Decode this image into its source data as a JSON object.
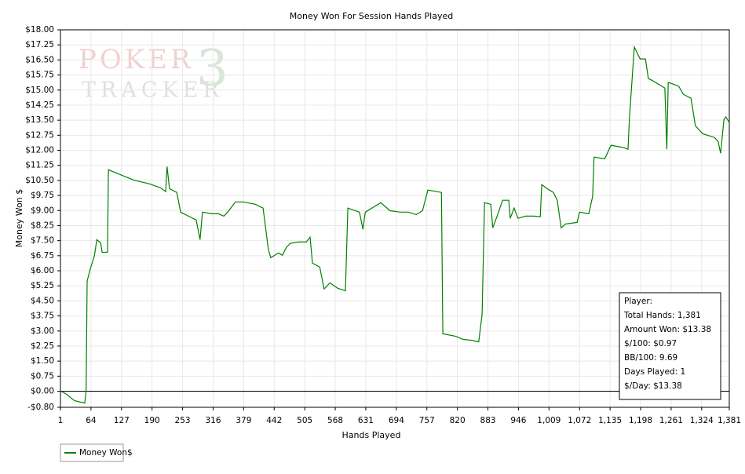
{
  "chart_data": {
    "type": "line",
    "title": "Money Won For Session Hands Played",
    "xlabel": "Hands Played",
    "ylabel": "Money Won $",
    "watermark": [
      "POKER",
      "TRACKER",
      "3"
    ],
    "x": [
      1,
      6,
      14,
      30,
      51,
      54,
      56,
      63,
      71,
      76,
      84,
      87,
      98,
      100,
      119,
      152,
      184,
      208,
      218,
      221,
      226,
      241,
      249,
      265,
      281,
      289,
      294,
      314,
      327,
      338,
      346,
      362,
      378,
      403,
      419,
      430,
      435,
      451,
      459,
      467,
      475,
      492,
      508,
      516,
      521,
      536,
      545,
      557,
      573,
      589,
      594,
      618,
      625,
      630,
      651,
      662,
      681,
      702,
      719,
      735,
      748,
      759,
      787,
      790,
      816,
      832,
      848,
      864,
      871,
      876,
      889,
      893,
      905,
      913,
      926,
      929,
      937,
      945,
      961,
      978,
      991,
      994,
      1005,
      1018,
      1026,
      1034,
      1043,
      1067,
      1072,
      1091,
      1099,
      1102,
      1124,
      1137,
      1164,
      1172,
      1175,
      1185,
      1197,
      1208,
      1214,
      1221,
      1237,
      1248,
      1252,
      1255,
      1269,
      1277,
      1286,
      1302,
      1311,
      1326,
      1350,
      1358,
      1363,
      1370,
      1374,
      1381
    ],
    "series": [
      {
        "name": "Money Won$",
        "color": "#008000",
        "values": [
          0,
          -0.04,
          -0.16,
          -0.47,
          -0.59,
          0,
          5.48,
          6.14,
          6.73,
          7.55,
          7.39,
          6.92,
          6.92,
          11.03,
          10.84,
          10.52,
          10.33,
          10.13,
          9.94,
          11.19,
          10.09,
          9.9,
          8.92,
          8.72,
          8.53,
          7.55,
          8.92,
          8.84,
          8.84,
          8.72,
          8.92,
          9.43,
          9.43,
          9.31,
          9.12,
          7.04,
          6.65,
          6.89,
          6.77,
          7.16,
          7.36,
          7.43,
          7.43,
          7.67,
          6.38,
          6.18,
          5.09,
          5.4,
          5.13,
          5.01,
          9.12,
          8.92,
          8.06,
          8.92,
          9.23,
          9.39,
          8.99,
          8.92,
          8.92,
          8.8,
          8.99,
          10.02,
          9.9,
          2.86,
          2.74,
          2.58,
          2.54,
          2.46,
          3.83,
          9.39,
          9.31,
          8.14,
          8.92,
          9.51,
          9.51,
          8.61,
          9.12,
          8.61,
          8.72,
          8.72,
          8.69,
          10.29,
          10.09,
          9.9,
          9.51,
          8.14,
          8.33,
          8.41,
          8.92,
          8.84,
          9.7,
          11.66,
          11.58,
          12.25,
          12.13,
          12.05,
          13.62,
          17.14,
          16.55,
          16.55,
          15.57,
          15.49,
          15.26,
          15.1,
          12.05,
          15.38,
          15.26,
          15.18,
          14.79,
          14.59,
          13.22,
          12.83,
          12.64,
          12.44,
          11.85,
          13.54,
          13.66,
          13.38
        ]
      }
    ],
    "xlim": [
      1,
      1381
    ],
    "ylim": [
      -0.8,
      18
    ],
    "xticks": [
      1,
      64,
      127,
      190,
      253,
      316,
      379,
      442,
      505,
      568,
      631,
      694,
      757,
      820,
      883,
      946,
      {
        "value": 1009,
        "label": "1,009"
      },
      {
        "value": 1072,
        "label": "1,072"
      },
      {
        "value": 1135,
        "label": "1,135"
      },
      {
        "value": 1198,
        "label": "1,198"
      },
      {
        "value": 1261,
        "label": "1,261"
      },
      {
        "value": 1324,
        "label": "1,324"
      },
      {
        "value": 1381,
        "label": "1,381"
      }
    ],
    "yticks": [
      {
        "value": -0.8,
        "label": "-$0.80"
      },
      {
        "value": 0,
        "label": "$0.00"
      },
      {
        "value": 0.75,
        "label": "$0.75"
      },
      {
        "value": 1.5,
        "label": "$1.50"
      },
      {
        "value": 2.25,
        "label": "$2.25"
      },
      {
        "value": 3,
        "label": "$3.00"
      },
      {
        "value": 3.75,
        "label": "$3.75"
      },
      {
        "value": 4.5,
        "label": "$4.50"
      },
      {
        "value": 5.25,
        "label": "$5.25"
      },
      {
        "value": 6,
        "label": "$6.00"
      },
      {
        "value": 6.75,
        "label": "$6.75"
      },
      {
        "value": 7.5,
        "label": "$7.50"
      },
      {
        "value": 8.25,
        "label": "$8.25"
      },
      {
        "value": 9,
        "label": "$9.00"
      },
      {
        "value": 9.75,
        "label": "$9.75"
      },
      {
        "value": 10.5,
        "label": "$10.50"
      },
      {
        "value": 11.25,
        "label": "$11.25"
      },
      {
        "value": 12,
        "label": "$12.00"
      },
      {
        "value": 12.75,
        "label": "$12.75"
      },
      {
        "value": 13.5,
        "label": "$13.50"
      },
      {
        "value": 14.25,
        "label": "$14.25"
      },
      {
        "value": 15,
        "label": "$15.00"
      },
      {
        "value": 15.75,
        "label": "$15.75"
      },
      {
        "value": 16.5,
        "label": "$16.50"
      },
      {
        "value": 17.25,
        "label": "$17.25"
      },
      {
        "value": 18,
        "label": "$18.00"
      }
    ],
    "grid": true,
    "reference_line": 0,
    "annotations": [
      "Player:",
      "Total Hands: 1,381",
      "Amount Won: $13.38",
      "$/100: $0.97",
      "BB/100: 9.69",
      "Days Played: 1",
      "$/Day: $13.38"
    ]
  }
}
